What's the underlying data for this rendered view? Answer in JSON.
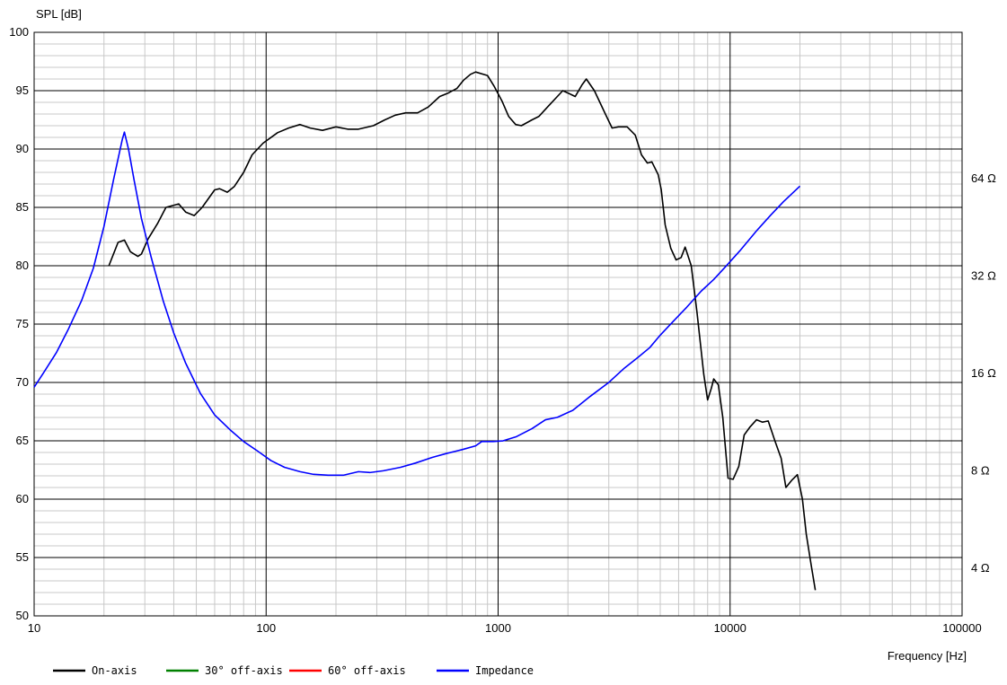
{
  "chart_data": {
    "type": "line",
    "title": "",
    "ylabel": "SPL [dB]",
    "xlabel": "Frequency [Hz]",
    "x_scale": "log",
    "xlim": [
      10,
      100000
    ],
    "ylim": [
      50,
      100
    ],
    "x_ticks": [
      10,
      100,
      1000,
      10000,
      100000
    ],
    "x_tick_labels": [
      "10",
      "100",
      "1000",
      "10000",
      "100000"
    ],
    "y_ticks": [
      50,
      55,
      60,
      65,
      70,
      75,
      80,
      85,
      90,
      95,
      100
    ],
    "y_tick_labels": [
      "50",
      "55",
      "60",
      "65",
      "70",
      "75",
      "80",
      "85",
      "90",
      "95",
      "100"
    ],
    "y2_scale": "log",
    "y2lim": [
      2.85,
      181
    ],
    "y2_ticks": [
      4,
      8,
      16,
      32,
      64
    ],
    "y2_tick_labels": [
      "4 Ω",
      "8 Ω",
      "16 Ω",
      "32 Ω",
      "64 Ω"
    ],
    "grid": true,
    "legend_position": "bottom-left",
    "legend": [
      {
        "name": "On-axis",
        "color": "#000000"
      },
      {
        "name": "30° off-axis",
        "color": "#008000"
      },
      {
        "name": "60° off-axis",
        "color": "#ff0000"
      },
      {
        "name": "Impedance",
        "color": "#0000ff"
      }
    ],
    "series": [
      {
        "name": "On-axis",
        "axis": "left",
        "color": "#000000",
        "points": [
          [
            21,
            80.0
          ],
          [
            23,
            82.0
          ],
          [
            24.5,
            82.2
          ],
          [
            26,
            81.2
          ],
          [
            28,
            80.8
          ],
          [
            29,
            81.0
          ],
          [
            31,
            82.3
          ],
          [
            34,
            83.6
          ],
          [
            37,
            85.0
          ],
          [
            42,
            85.3
          ],
          [
            45,
            84.6
          ],
          [
            49,
            84.3
          ],
          [
            53,
            85.0
          ],
          [
            60,
            86.5
          ],
          [
            63,
            86.6
          ],
          [
            68,
            86.3
          ],
          [
            73,
            86.8
          ],
          [
            80,
            88.0
          ],
          [
            87,
            89.5
          ],
          [
            97,
            90.5
          ],
          [
            112,
            91.4
          ],
          [
            125,
            91.8
          ],
          [
            140,
            92.1
          ],
          [
            155,
            91.8
          ],
          [
            175,
            91.6
          ],
          [
            200,
            91.9
          ],
          [
            225,
            91.7
          ],
          [
            250,
            91.7
          ],
          [
            290,
            92.0
          ],
          [
            325,
            92.5
          ],
          [
            360,
            92.9
          ],
          [
            400,
            93.1
          ],
          [
            450,
            93.1
          ],
          [
            500,
            93.6
          ],
          [
            560,
            94.5
          ],
          [
            610,
            94.8
          ],
          [
            665,
            95.2
          ],
          [
            710,
            95.9
          ],
          [
            760,
            96.4
          ],
          [
            800,
            96.6
          ],
          [
            900,
            96.3
          ],
          [
            960,
            95.4
          ],
          [
            1040,
            94.1
          ],
          [
            1110,
            92.8
          ],
          [
            1190,
            92.1
          ],
          [
            1260,
            92.0
          ],
          [
            1400,
            92.5
          ],
          [
            1500,
            92.8
          ],
          [
            1650,
            93.7
          ],
          [
            1800,
            94.5
          ],
          [
            1900,
            95.0
          ],
          [
            2000,
            94.8
          ],
          [
            2150,
            94.5
          ],
          [
            2300,
            95.5
          ],
          [
            2400,
            96.0
          ],
          [
            2600,
            95.0
          ],
          [
            2900,
            93.0
          ],
          [
            3100,
            91.8
          ],
          [
            3300,
            91.9
          ],
          [
            3600,
            91.9
          ],
          [
            3900,
            91.2
          ],
          [
            4150,
            89.5
          ],
          [
            4400,
            88.8
          ],
          [
            4600,
            88.9
          ],
          [
            4900,
            87.8
          ],
          [
            5050,
            86.5
          ],
          [
            5250,
            83.5
          ],
          [
            5550,
            81.5
          ],
          [
            5850,
            80.5
          ],
          [
            6150,
            80.7
          ],
          [
            6400,
            81.6
          ],
          [
            6800,
            80.0
          ],
          [
            7200,
            76.0
          ],
          [
            7700,
            70.7
          ],
          [
            8000,
            68.5
          ],
          [
            8300,
            69.5
          ],
          [
            8500,
            70.3
          ],
          [
            8900,
            69.8
          ],
          [
            9300,
            67.0
          ],
          [
            9800,
            61.8
          ],
          [
            10300,
            61.7
          ],
          [
            10900,
            62.8
          ],
          [
            11500,
            65.5
          ],
          [
            12200,
            66.2
          ],
          [
            13000,
            66.8
          ],
          [
            13800,
            66.6
          ],
          [
            14600,
            66.7
          ],
          [
            15600,
            65.0
          ],
          [
            16600,
            63.5
          ],
          [
            17400,
            61.0
          ],
          [
            18400,
            61.6
          ],
          [
            19500,
            62.1
          ],
          [
            20500,
            60.0
          ],
          [
            21300,
            57.0
          ],
          [
            22300,
            54.5
          ],
          [
            23300,
            52.2
          ]
        ]
      },
      {
        "name": "Impedance",
        "axis": "right",
        "color": "#0000ff",
        "points": [
          [
            10,
            14.5
          ],
          [
            11,
            16.1
          ],
          [
            12.5,
            18.6
          ],
          [
            14,
            21.8
          ],
          [
            16,
            26.8
          ],
          [
            18,
            33.8
          ],
          [
            20,
            45.5
          ],
          [
            22,
            63.5
          ],
          [
            24,
            84.6
          ],
          [
            24.5,
            89.0
          ],
          [
            25.5,
            79.0
          ],
          [
            27,
            63.0
          ],
          [
            29,
            48.2
          ],
          [
            32,
            36.4
          ],
          [
            36,
            26.8
          ],
          [
            40,
            21.3
          ],
          [
            45,
            17.2
          ],
          [
            52,
            13.9
          ],
          [
            60,
            11.9
          ],
          [
            70,
            10.7
          ],
          [
            80,
            9.85
          ],
          [
            92,
            9.2
          ],
          [
            105,
            8.6
          ],
          [
            120,
            8.2
          ],
          [
            140,
            7.95
          ],
          [
            160,
            7.8
          ],
          [
            185,
            7.75
          ],
          [
            215,
            7.75
          ],
          [
            250,
            7.95
          ],
          [
            280,
            7.9
          ],
          [
            320,
            8.0
          ],
          [
            380,
            8.2
          ],
          [
            440,
            8.45
          ],
          [
            520,
            8.8
          ],
          [
            600,
            9.05
          ],
          [
            700,
            9.3
          ],
          [
            800,
            9.55
          ],
          [
            850,
            9.85
          ],
          [
            950,
            9.85
          ],
          [
            1050,
            9.9
          ],
          [
            1200,
            10.2
          ],
          [
            1400,
            10.8
          ],
          [
            1600,
            11.5
          ],
          [
            1800,
            11.7
          ],
          [
            2100,
            12.3
          ],
          [
            2500,
            13.6
          ],
          [
            3000,
            15.0
          ],
          [
            3500,
            16.6
          ],
          [
            4000,
            17.9
          ],
          [
            4500,
            19.2
          ],
          [
            5000,
            21.0
          ],
          [
            5700,
            23.2
          ],
          [
            6500,
            25.6
          ],
          [
            7500,
            28.7
          ],
          [
            8500,
            31.2
          ],
          [
            9500,
            34.0
          ],
          [
            11000,
            38.2
          ],
          [
            13000,
            44.1
          ],
          [
            15000,
            49.4
          ],
          [
            17000,
            54.3
          ],
          [
            20000,
            60.6
          ]
        ]
      }
    ]
  }
}
